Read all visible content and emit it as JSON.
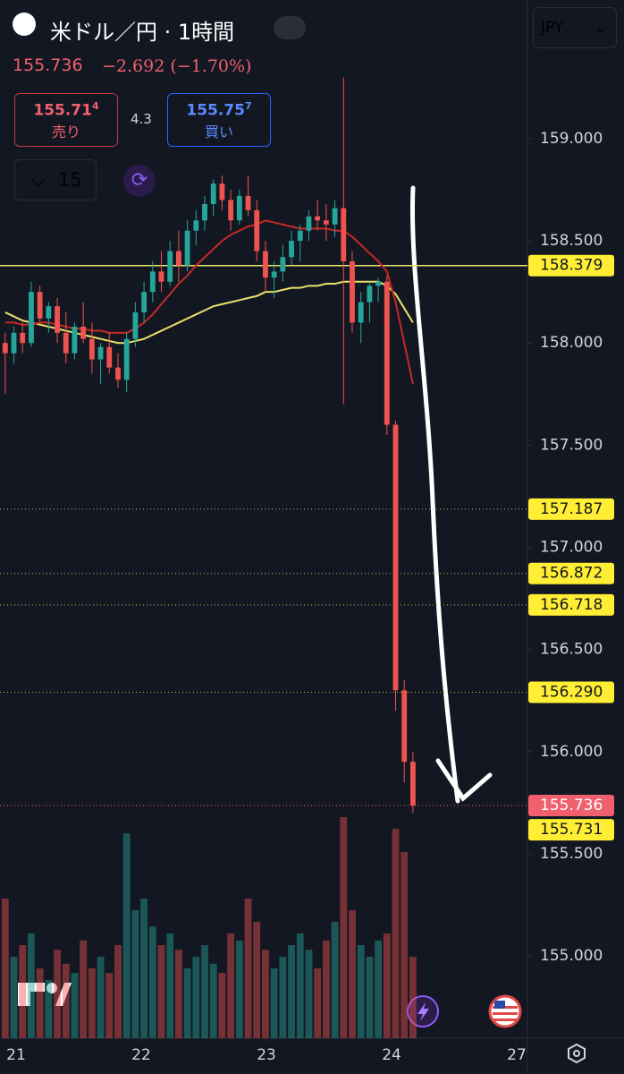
{
  "header": {
    "title": "米ドル／円 · 1時間",
    "price": "155.736",
    "change": "−2.692 (−1.70%)",
    "sell": {
      "price": "155.71",
      "sup": "4",
      "label": "売り"
    },
    "spread": "4.3",
    "buy": {
      "price": "155.75",
      "sup": "7",
      "label": "買い"
    },
    "interval": "15",
    "currency": "JPY"
  },
  "chart_data": {
    "type": "candlestick",
    "x": [
      0,
      1,
      2,
      3,
      4,
      5,
      6,
      7,
      8,
      9,
      10,
      11,
      12,
      13,
      14,
      15,
      16,
      17,
      18,
      19,
      20,
      21,
      22,
      23,
      24,
      25,
      26,
      27,
      28,
      29,
      30,
      31,
      32,
      33,
      34,
      35,
      36,
      37,
      38,
      39,
      40,
      41,
      42,
      43,
      44,
      45,
      46,
      47
    ],
    "open": [
      158.0,
      157.95,
      158.05,
      158.0,
      158.25,
      158.12,
      158.18,
      158.05,
      157.95,
      158.08,
      158.02,
      157.92,
      157.98,
      157.88,
      157.82,
      158.02,
      158.15,
      158.25,
      158.35,
      158.3,
      158.45,
      158.38,
      158.55,
      158.6,
      158.68,
      158.78,
      158.7,
      158.6,
      158.72,
      158.65,
      158.45,
      158.32,
      158.35,
      158.42,
      158.5,
      158.55,
      158.62,
      158.6,
      158.58,
      158.66,
      158.4,
      158.1,
      158.2,
      158.28,
      158.3,
      157.6,
      156.3,
      155.95
    ],
    "high": [
      158.05,
      158.08,
      158.1,
      158.3,
      158.28,
      158.2,
      158.22,
      158.15,
      158.1,
      158.2,
      158.1,
      158.0,
      158.05,
      157.95,
      158.05,
      158.2,
      158.3,
      158.4,
      158.45,
      158.5,
      158.55,
      158.6,
      158.65,
      158.72,
      158.8,
      158.82,
      158.75,
      158.75,
      158.82,
      158.7,
      158.5,
      158.4,
      158.48,
      158.55,
      158.58,
      158.65,
      158.7,
      158.68,
      158.7,
      159.3,
      158.45,
      158.25,
      158.3,
      158.32,
      158.33,
      157.62,
      156.35,
      156.0
    ],
    "low": [
      157.75,
      157.9,
      157.95,
      157.98,
      158.1,
      158.05,
      158.0,
      157.9,
      157.92,
      158.0,
      157.85,
      157.8,
      157.85,
      157.78,
      157.76,
      157.98,
      158.1,
      158.2,
      158.25,
      158.28,
      158.3,
      158.35,
      158.48,
      158.55,
      158.62,
      158.65,
      158.55,
      158.58,
      158.62,
      158.4,
      158.25,
      158.22,
      158.3,
      158.38,
      158.4,
      158.5,
      158.55,
      158.5,
      158.52,
      157.7,
      158.05,
      158.0,
      158.1,
      158.2,
      157.55,
      156.2,
      155.85,
      155.7
    ],
    "close": [
      157.95,
      158.05,
      158.0,
      158.25,
      158.12,
      158.18,
      158.05,
      157.95,
      158.08,
      158.02,
      157.92,
      157.98,
      157.88,
      157.82,
      158.02,
      158.15,
      158.25,
      158.35,
      158.3,
      158.45,
      158.38,
      158.55,
      158.6,
      158.68,
      158.78,
      158.7,
      158.6,
      158.72,
      158.65,
      158.45,
      158.32,
      158.35,
      158.42,
      158.5,
      158.55,
      158.62,
      158.6,
      158.58,
      158.66,
      158.4,
      158.1,
      158.2,
      158.28,
      158.3,
      157.6,
      156.3,
      155.95,
      155.736
    ],
    "volume": [
      60,
      35,
      40,
      45,
      30,
      25,
      38,
      32,
      28,
      42,
      30,
      35,
      28,
      40,
      88,
      55,
      60,
      48,
      40,
      45,
      38,
      30,
      35,
      40,
      32,
      28,
      45,
      42,
      60,
      50,
      38,
      30,
      35,
      40,
      45,
      38,
      30,
      42,
      50,
      95,
      55,
      40,
      35,
      42,
      45,
      90,
      80,
      35
    ],
    "vlim": [
      0,
      100
    ],
    "ma": [
      {
        "color": "#e8e36a",
        "values": [
          158.15,
          158.13,
          158.11,
          158.1,
          158.09,
          158.08,
          158.07,
          158.06,
          158.05,
          158.04,
          158.03,
          158.02,
          158.01,
          158.0,
          158.0,
          158.01,
          158.02,
          158.04,
          158.06,
          158.08,
          158.1,
          158.12,
          158.14,
          158.16,
          158.18,
          158.19,
          158.2,
          158.21,
          158.22,
          158.23,
          158.25,
          158.25,
          158.26,
          158.27,
          158.27,
          158.28,
          158.28,
          158.29,
          158.29,
          158.3,
          158.3,
          158.3,
          158.3,
          158.3,
          158.28,
          158.24,
          158.17,
          158.1
        ]
      },
      {
        "color": "#c62828",
        "values": [
          158.1,
          158.1,
          158.09,
          158.09,
          158.1,
          158.1,
          158.09,
          158.08,
          158.07,
          158.07,
          158.06,
          158.06,
          158.05,
          158.05,
          158.05,
          158.07,
          158.1,
          158.14,
          158.19,
          158.24,
          158.29,
          158.33,
          158.38,
          158.42,
          158.46,
          158.5,
          158.53,
          158.55,
          158.57,
          158.58,
          158.6,
          158.59,
          158.58,
          158.57,
          158.56,
          158.56,
          158.56,
          158.56,
          158.55,
          158.55,
          158.52,
          158.48,
          158.44,
          158.4,
          158.35,
          158.2,
          158.0,
          157.8
        ]
      }
    ],
    "up_color": "#26a69a",
    "down_color": "#ef5350",
    "xlim": [
      -0.6,
      60.2
    ],
    "xticks": [
      {
        "value": 1.25,
        "label": "21"
      },
      {
        "value": 15.68,
        "label": "22"
      },
      {
        "value": 30.11,
        "label": "23"
      },
      {
        "value": 44.54,
        "label": "24"
      },
      {
        "value": 58.96,
        "label": "27"
      }
    ],
    "ylim": [
      154.597,
      159.679
    ],
    "yticks": [
      {
        "value": 159,
        "label": "159.000"
      },
      {
        "value": 158.5,
        "label": "158.500"
      },
      {
        "value": 158,
        "label": "158.000"
      },
      {
        "value": 157.5,
        "label": "157.500"
      },
      {
        "value": 157,
        "label": "157.000"
      },
      {
        "value": 156.5,
        "label": "156.500"
      },
      {
        "value": 156,
        "label": "156.000"
      },
      {
        "value": 155.5,
        "label": "155.500"
      },
      {
        "value": 155,
        "label": "155.000"
      }
    ],
    "price_lines": [
      {
        "value": 158.379,
        "label": "158.379",
        "color": "#e8e36a",
        "style": "solid"
      },
      {
        "value": 157.187,
        "label": "157.187",
        "color": "#c8b84a",
        "style": "dotted"
      },
      {
        "value": 156.872,
        "label": "156.872",
        "color": "#c8b84a",
        "style": "dotted"
      },
      {
        "value": 156.718,
        "label": "156.718",
        "color": "#c8b84a",
        "style": "dotted"
      },
      {
        "value": 156.29,
        "label": "156.290",
        "color": "#c8b84a",
        "style": "dotted"
      },
      {
        "value": 155.736,
        "label": "155.736",
        "color": "#f0616d",
        "style": "dotted"
      },
      {
        "value": 155.731,
        "label": "155.731",
        "color": "#ffee33",
        "style": "none"
      }
    ]
  }
}
